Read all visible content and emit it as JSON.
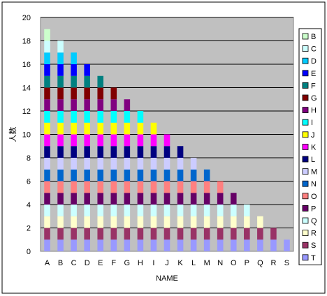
{
  "chart_data": {
    "type": "bar",
    "stacked": true,
    "xlabel": "NAME",
    "ylabel": "人数",
    "ylim": [
      0,
      20
    ],
    "ytick_step": 2,
    "grid": "horizontal",
    "legend_position": "right",
    "plot_background": "#C0C0C0",
    "categories": [
      "A",
      "B",
      "C",
      "D",
      "E",
      "F",
      "G",
      "H",
      "I",
      "J",
      "K",
      "L",
      "M",
      "N",
      "O",
      "P",
      "Q",
      "R",
      "S"
    ],
    "series": [
      {
        "name": "T",
        "color": "#9999FF",
        "values": [
          1,
          1,
          1,
          1,
          1,
          1,
          1,
          1,
          1,
          1,
          1,
          1,
          1,
          1,
          1,
          1,
          1,
          1,
          1
        ]
      },
      {
        "name": "S",
        "color": "#993366",
        "values": [
          1,
          1,
          1,
          1,
          1,
          1,
          1,
          1,
          1,
          1,
          1,
          1,
          1,
          1,
          1,
          1,
          1,
          1,
          0
        ]
      },
      {
        "name": "R",
        "color": "#FFFFCC",
        "values": [
          1,
          1,
          1,
          1,
          1,
          1,
          1,
          1,
          1,
          1,
          1,
          1,
          1,
          1,
          1,
          1,
          1,
          0,
          0
        ]
      },
      {
        "name": "Q",
        "color": "#CCFFFF",
        "values": [
          1,
          1,
          1,
          1,
          1,
          1,
          1,
          1,
          1,
          1,
          1,
          1,
          1,
          1,
          1,
          1,
          0,
          0,
          0
        ]
      },
      {
        "name": "P",
        "color": "#660066",
        "values": [
          1,
          1,
          1,
          1,
          1,
          1,
          1,
          1,
          1,
          1,
          1,
          1,
          1,
          1,
          1,
          0,
          0,
          0,
          0
        ]
      },
      {
        "name": "O",
        "color": "#FF8080",
        "values": [
          1,
          1,
          1,
          1,
          1,
          1,
          1,
          1,
          1,
          1,
          1,
          1,
          1,
          1,
          0,
          0,
          0,
          0,
          0
        ]
      },
      {
        "name": "N",
        "color": "#0066CC",
        "values": [
          1,
          1,
          1,
          1,
          1,
          1,
          1,
          1,
          1,
          1,
          1,
          1,
          1,
          0,
          0,
          0,
          0,
          0,
          0
        ]
      },
      {
        "name": "M",
        "color": "#CCCCFF",
        "values": [
          1,
          1,
          1,
          1,
          1,
          1,
          1,
          1,
          1,
          1,
          1,
          1,
          0,
          0,
          0,
          0,
          0,
          0,
          0
        ]
      },
      {
        "name": "L",
        "color": "#000080",
        "values": [
          1,
          1,
          1,
          1,
          1,
          1,
          1,
          1,
          1,
          1,
          1,
          0,
          0,
          0,
          0,
          0,
          0,
          0,
          0
        ]
      },
      {
        "name": "K",
        "color": "#FF00FF",
        "values": [
          1,
          1,
          1,
          1,
          1,
          1,
          1,
          1,
          1,
          1,
          0,
          0,
          0,
          0,
          0,
          0,
          0,
          0,
          0
        ]
      },
      {
        "name": "J",
        "color": "#FFFF00",
        "values": [
          1,
          1,
          1,
          1,
          1,
          1,
          1,
          1,
          1,
          0,
          0,
          0,
          0,
          0,
          0,
          0,
          0,
          0,
          0
        ]
      },
      {
        "name": "I",
        "color": "#00FFFF",
        "values": [
          1,
          1,
          1,
          1,
          1,
          1,
          1,
          1,
          0,
          0,
          0,
          0,
          0,
          0,
          0,
          0,
          0,
          0,
          0
        ]
      },
      {
        "name": "H",
        "color": "#800080",
        "values": [
          1,
          1,
          1,
          1,
          1,
          1,
          1,
          0,
          0,
          0,
          0,
          0,
          0,
          0,
          0,
          0,
          0,
          0,
          0
        ]
      },
      {
        "name": "G",
        "color": "#800000",
        "values": [
          1,
          1,
          1,
          1,
          1,
          1,
          0,
          0,
          0,
          0,
          0,
          0,
          0,
          0,
          0,
          0,
          0,
          0,
          0
        ]
      },
      {
        "name": "F",
        "color": "#008080",
        "values": [
          1,
          1,
          1,
          1,
          1,
          0,
          0,
          0,
          0,
          0,
          0,
          0,
          0,
          0,
          0,
          0,
          0,
          0,
          0
        ]
      },
      {
        "name": "E",
        "color": "#0000FF",
        "values": [
          1,
          1,
          1,
          1,
          0,
          0,
          0,
          0,
          0,
          0,
          0,
          0,
          0,
          0,
          0,
          0,
          0,
          0,
          0
        ]
      },
      {
        "name": "D",
        "color": "#00CCFF",
        "values": [
          1,
          1,
          1,
          0,
          0,
          0,
          0,
          0,
          0,
          0,
          0,
          0,
          0,
          0,
          0,
          0,
          0,
          0,
          0
        ]
      },
      {
        "name": "C",
        "color": "#CCFFFF",
        "values": [
          1,
          1,
          0,
          0,
          0,
          0,
          0,
          0,
          0,
          0,
          0,
          0,
          0,
          0,
          0,
          0,
          0,
          0,
          0
        ]
      },
      {
        "name": "B",
        "color": "#CCFFCC",
        "values": [
          1,
          0,
          0,
          0,
          0,
          0,
          0,
          0,
          0,
          0,
          0,
          0,
          0,
          0,
          0,
          0,
          0,
          0,
          0
        ]
      }
    ],
    "legend_order": [
      "B",
      "C",
      "D",
      "E",
      "F",
      "G",
      "H",
      "I",
      "J",
      "K",
      "L",
      "M",
      "N",
      "O",
      "P",
      "Q",
      "R",
      "S",
      "T"
    ]
  }
}
